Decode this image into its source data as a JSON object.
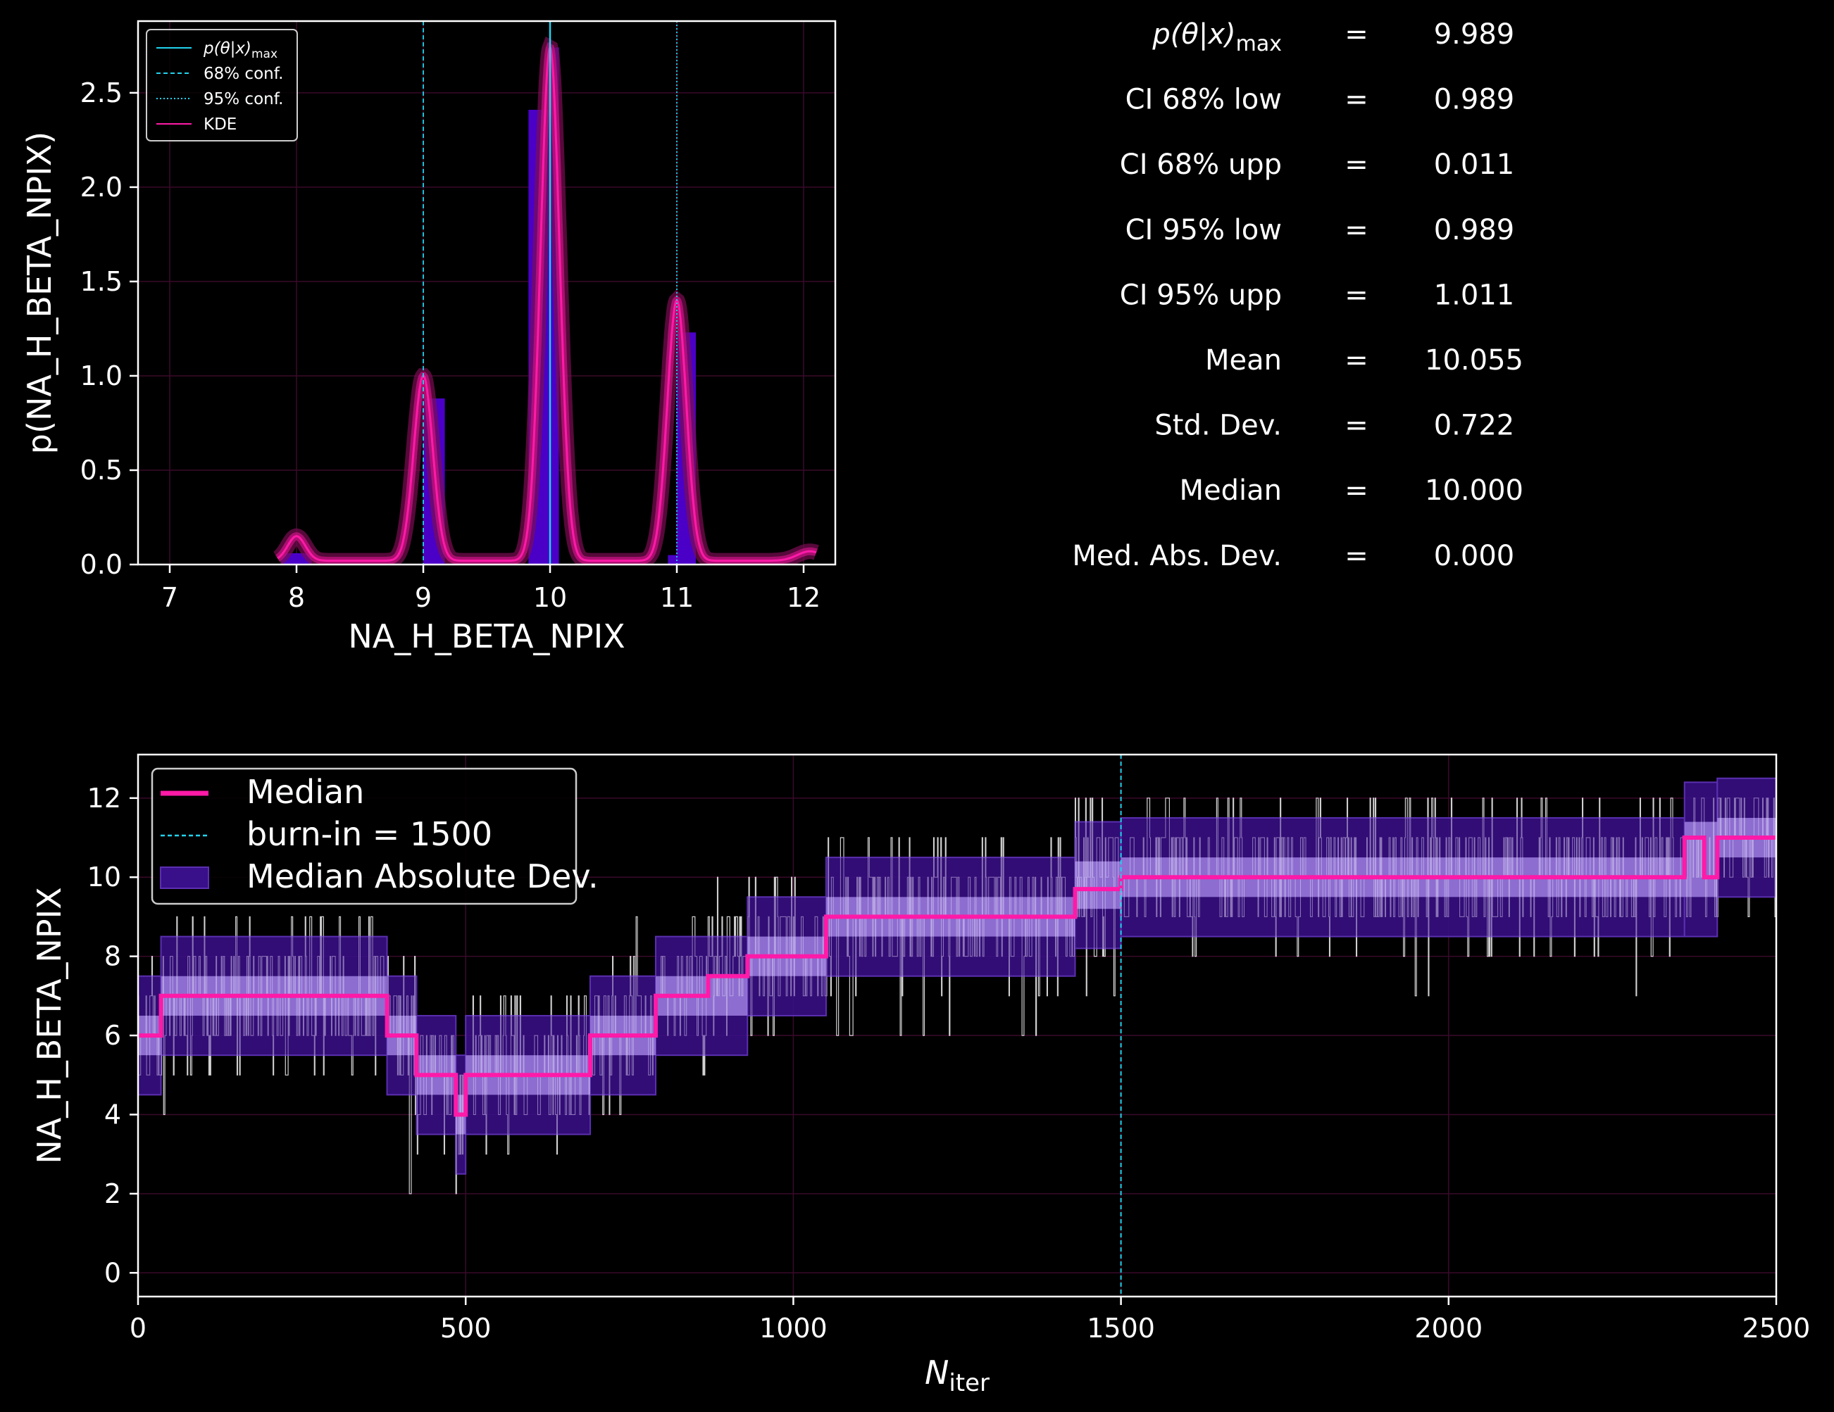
{
  "colors": {
    "background": "#000000",
    "axes": "#ffffff",
    "cyan": "#22d3ee",
    "magenta": "#ff1aa8",
    "histogram": "#4b00c8",
    "mad_band": "#9d7fe0",
    "mad_band_outer": "#3a0f8a",
    "trace": "#d8d8d8",
    "grid": "#3a0a2a"
  },
  "chart_data": [
    {
      "type": "bar",
      "name": "posterior_histogram",
      "xlabel": "NA_H_BETA_NPIX",
      "ylabel": "p(NA_H_BETA_NPIX)",
      "xlim": [
        6.75,
        12.25
      ],
      "ylim": [
        0,
        2.88
      ],
      "xticks": [
        "7",
        "8",
        "9",
        "10",
        "11",
        "12"
      ],
      "yticks": [
        "0.0",
        "0.5",
        "1.0",
        "1.5",
        "2.0",
        "2.5"
      ],
      "grid": true,
      "legend_placement": "top-left",
      "legend": [
        {
          "label_main": "p(θ|x)",
          "label_sub": "max",
          "style": "solid",
          "color": "#22d3ee"
        },
        {
          "label_main": "68% conf.",
          "label_sub": "",
          "style": "dashed",
          "color": "#22d3ee"
        },
        {
          "label_main": "95% conf.",
          "label_sub": "",
          "style": "dotted",
          "color": "#22d3ee"
        },
        {
          "label_main": "KDE",
          "label_sub": "",
          "style": "solid",
          "color": "#ff1aa8"
        }
      ],
      "bars": [
        {
          "x0": 7.88,
          "x1": 8.12,
          "height": 0.06
        },
        {
          "x0": 8.88,
          "x1": 9.0,
          "height": 0.0
        },
        {
          "x0": 9.0,
          "x1": 9.17,
          "height": 0.88
        },
        {
          "x0": 9.83,
          "x1": 10.0,
          "height": 2.41
        },
        {
          "x0": 10.0,
          "x1": 10.07,
          "height": 2.74
        },
        {
          "x0": 10.93,
          "x1": 11.0,
          "height": 0.05
        },
        {
          "x0": 11.0,
          "x1": 11.15,
          "height": 1.23
        }
      ],
      "vlines": [
        {
          "x": 10.0,
          "style": "solid"
        },
        {
          "x": 9.0,
          "style": "dashed"
        },
        {
          "x": 10.0,
          "style": "dashed"
        },
        {
          "x": 11.0,
          "style": "dotted"
        }
      ],
      "kde_peaks": [
        {
          "center": 8.0,
          "height": 0.13,
          "sigma": 0.07
        },
        {
          "center": 9.0,
          "height": 0.98,
          "sigma": 0.075
        },
        {
          "center": 10.0,
          "height": 2.72,
          "sigma": 0.075
        },
        {
          "center": 11.0,
          "height": 1.38,
          "sigma": 0.075
        },
        {
          "center": 12.05,
          "height": 0.05,
          "sigma": 0.1
        }
      ]
    },
    {
      "type": "line",
      "name": "trace_plot",
      "xlabel_main": "N",
      "xlabel_sub": "iter",
      "ylabel": "NA_H_BETA_NPIX",
      "xlim": [
        0,
        2500
      ],
      "ylim": [
        -0.6,
        13.1
      ],
      "xticks": [
        "0",
        "500",
        "1000",
        "1500",
        "2000",
        "2500"
      ],
      "yticks": [
        "0",
        "2",
        "4",
        "6",
        "8",
        "10",
        "12"
      ],
      "grid": true,
      "legend_placement": "top-left",
      "legend": [
        {
          "label": "Median",
          "kind": "line"
        },
        {
          "label": "burn-in = 1500",
          "kind": "dashed"
        },
        {
          "label": "Median Absolute Dev.",
          "kind": "patch"
        }
      ],
      "burn_in": 1500,
      "median_steps": [
        {
          "x0": 0,
          "x1": 35,
          "y": 6
        },
        {
          "x0": 35,
          "x1": 380,
          "y": 7
        },
        {
          "x0": 380,
          "x1": 425,
          "y": 6
        },
        {
          "x0": 425,
          "x1": 485,
          "y": 5
        },
        {
          "x0": 485,
          "x1": 500,
          "y": 4
        },
        {
          "x0": 500,
          "x1": 690,
          "y": 5
        },
        {
          "x0": 690,
          "x1": 790,
          "y": 6
        },
        {
          "x0": 790,
          "x1": 870,
          "y": 7
        },
        {
          "x0": 870,
          "x1": 930,
          "y": 7.5
        },
        {
          "x0": 930,
          "x1": 1050,
          "y": 8
        },
        {
          "x0": 1050,
          "x1": 1430,
          "y": 9
        },
        {
          "x0": 1430,
          "x1": 1500,
          "y": 9.7
        },
        {
          "x0": 1500,
          "x1": 2360,
          "y": 10
        },
        {
          "x0": 2360,
          "x1": 2390,
          "y": 11
        },
        {
          "x0": 2390,
          "x1": 2410,
          "y": 10
        },
        {
          "x0": 2410,
          "x1": 2500,
          "y": 11
        }
      ],
      "mad_bands": [
        {
          "x0": 0,
          "x1": 35,
          "low": 4.5,
          "high": 7.5
        },
        {
          "x0": 35,
          "x1": 380,
          "low": 5.5,
          "high": 8.5
        },
        {
          "x0": 380,
          "x1": 425,
          "low": 4.5,
          "high": 7.5
        },
        {
          "x0": 425,
          "x1": 485,
          "low": 3.5,
          "high": 6.5
        },
        {
          "x0": 485,
          "x1": 500,
          "low": 2.5,
          "high": 5.5
        },
        {
          "x0": 500,
          "x1": 690,
          "low": 3.5,
          "high": 6.5
        },
        {
          "x0": 690,
          "x1": 790,
          "low": 4.5,
          "high": 7.5
        },
        {
          "x0": 790,
          "x1": 930,
          "low": 5.5,
          "high": 8.5
        },
        {
          "x0": 930,
          "x1": 1050,
          "low": 6.5,
          "high": 9.5
        },
        {
          "x0": 1050,
          "x1": 1430,
          "low": 7.5,
          "high": 10.5
        },
        {
          "x0": 1430,
          "x1": 1500,
          "low": 8.2,
          "high": 11.4
        },
        {
          "x0": 1500,
          "x1": 2360,
          "low": 8.5,
          "high": 11.5
        },
        {
          "x0": 2360,
          "x1": 2410,
          "low": 8.5,
          "high": 12.4
        },
        {
          "x0": 2410,
          "x1": 2500,
          "low": 9.5,
          "high": 12.5
        }
      ],
      "trace_ranges": [
        {
          "x0": 0,
          "x1": 35,
          "low": 4,
          "high": 8
        },
        {
          "x0": 35,
          "x1": 380,
          "low": 4,
          "high": 9
        },
        {
          "x0": 380,
          "x1": 425,
          "low": 2,
          "high": 9
        },
        {
          "x0": 425,
          "x1": 485,
          "low": 0,
          "high": 8
        },
        {
          "x0": 485,
          "x1": 500,
          "low": 1,
          "high": 6
        },
        {
          "x0": 500,
          "x1": 690,
          "low": 3,
          "high": 7
        },
        {
          "x0": 690,
          "x1": 790,
          "low": 4,
          "high": 9
        },
        {
          "x0": 790,
          "x1": 930,
          "low": 5,
          "high": 10
        },
        {
          "x0": 930,
          "x1": 1050,
          "low": 6,
          "high": 10
        },
        {
          "x0": 1050,
          "x1": 1430,
          "low": 6,
          "high": 11
        },
        {
          "x0": 1430,
          "x1": 1500,
          "low": 7,
          "high": 12
        },
        {
          "x0": 1500,
          "x1": 2360,
          "low": 7,
          "high": 12
        },
        {
          "x0": 2360,
          "x1": 2500,
          "low": 9,
          "high": 12
        }
      ]
    }
  ],
  "stats": [
    {
      "label_main": "p(θ|x)",
      "label_sub": "max",
      "eq": "=",
      "value": "9.989"
    },
    {
      "label_main": "CI 68% low",
      "label_sub": "",
      "eq": "=",
      "value": "0.989"
    },
    {
      "label_main": "CI 68% upp",
      "label_sub": "",
      "eq": "=",
      "value": "0.011"
    },
    {
      "label_main": "CI 95% low",
      "label_sub": "",
      "eq": "=",
      "value": "0.989"
    },
    {
      "label_main": "CI 95% upp",
      "label_sub": "",
      "eq": "=",
      "value": "1.011"
    },
    {
      "label_main": "Mean",
      "label_sub": "",
      "eq": "=",
      "value": "10.055"
    },
    {
      "label_main": "Std.  Dev.",
      "label_sub": "",
      "eq": "=",
      "value": "0.722"
    },
    {
      "label_main": "Median",
      "label_sub": "",
      "eq": "=",
      "value": "10.000"
    },
    {
      "label_main": "Med. Abs. Dev.",
      "label_sub": "",
      "eq": "=",
      "value": "0.000"
    }
  ]
}
